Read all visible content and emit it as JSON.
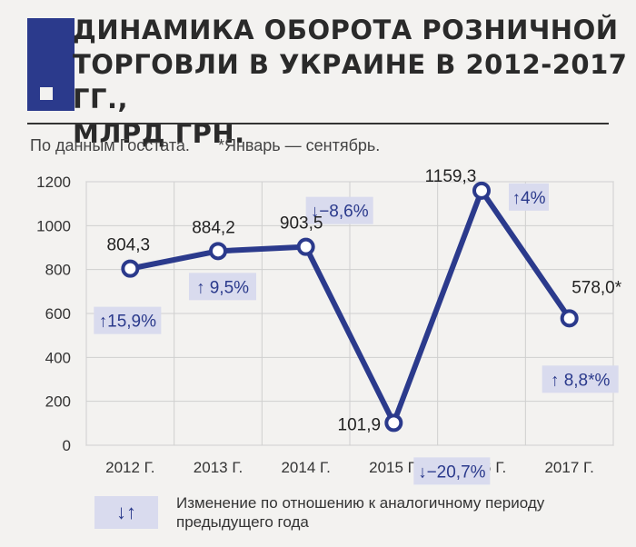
{
  "title_lines": [
    "ДИНАМИКА ОБОРОТА РОЗНИЧНОЙ",
    "ТОРГОВЛИ В УКРАИНЕ В 2012-2017 ГГ.,",
    "МЛРД ГРН."
  ],
  "source": "По данным Госстата.",
  "footnote": "*Январь — сентябрь.",
  "legend": {
    "symbols": "↓↑",
    "text": "Изменение по отношению к аналогичному периоду предыдущего года"
  },
  "colors": {
    "line": "#2b3a8c",
    "badge_bg": "#d9dbee",
    "badge_text": "#2b3a8c",
    "grid": "#cfcfcf",
    "accent_block": "#2b3a8c"
  },
  "chart_data": {
    "type": "line",
    "title": "ДИНАМИКА ОБОРОТА РОЗНИЧНОЙ ТОРГОВЛИ В УКРАИНЕ В 2012-2017 ГГ., МЛРД ГРН.",
    "categories": [
      "2012 Г.",
      "2013 Г.",
      "2014 Г.",
      "2015 Г.",
      "2016 Г.",
      "2017 Г."
    ],
    "values": [
      804.3,
      884.2,
      903.5,
      101.9,
      1159.3,
      578.0
    ],
    "value_labels": [
      "804,3",
      "884,2",
      "903,5",
      "101,9",
      "1159,3",
      "578,0*"
    ],
    "changes": [
      "↑15,9%",
      "↑ 9,5%",
      "↓−8,6%",
      "↓−20,7%",
      "↑4%",
      "↑ 8,8*%"
    ],
    "y_ticks": [
      0,
      200,
      400,
      600,
      800,
      1000,
      1200
    ],
    "ylim": [
      0,
      1200
    ],
    "grid": true,
    "xlabel": "",
    "ylabel": ""
  }
}
